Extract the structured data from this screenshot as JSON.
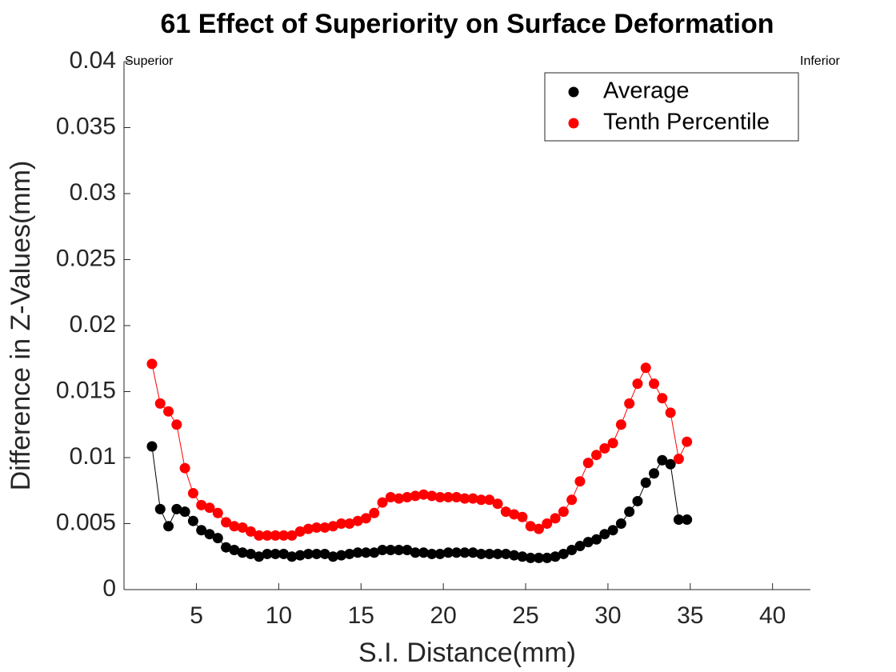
{
  "chart_data": {
    "type": "scatter-line",
    "title": "61  Effect of Superiority on Surface Deformation",
    "xlabel": "S.I. Distance(mm)",
    "ylabel": "Difference in Z-Values(mm)",
    "annotations": [
      "Superior",
      "Inferior"
    ],
    "legend": "upper right",
    "xlim": [
      0.6,
      42.3
    ],
    "ylim": [
      0,
      0.04
    ],
    "xticks": [
      5,
      10,
      15,
      20,
      25,
      30,
      35,
      40
    ],
    "yticks": [
      0,
      0.005,
      0.01,
      0.015,
      0.02,
      0.025,
      0.03,
      0.035,
      0.04
    ],
    "x": [
      2.3,
      2.8,
      3.3,
      3.8,
      4.3,
      4.8,
      5.3,
      5.8,
      6.3,
      6.8,
      7.3,
      7.8,
      8.3,
      8.8,
      9.3,
      9.8,
      10.3,
      10.8,
      11.3,
      11.8,
      12.3,
      12.8,
      13.3,
      13.8,
      14.3,
      14.8,
      15.3,
      15.8,
      16.3,
      16.8,
      17.3,
      17.8,
      18.3,
      18.8,
      19.3,
      19.8,
      20.3,
      20.8,
      21.3,
      21.8,
      22.3,
      22.8,
      23.3,
      23.8,
      24.3,
      24.8,
      25.3,
      25.8,
      26.3,
      26.8,
      27.3,
      27.8,
      28.3,
      28.8,
      29.3,
      29.8,
      30.3,
      30.8,
      31.3,
      31.8,
      32.3,
      32.8,
      33.3,
      33.8,
      34.3,
      34.8
    ],
    "series": [
      {
        "name": "Average",
        "color": "#000000",
        "values": [
          0.01085,
          0.0061,
          0.0048,
          0.0061,
          0.0059,
          0.0052,
          0.0045,
          0.0042,
          0.0039,
          0.0032,
          0.003,
          0.0028,
          0.0027,
          0.0025,
          0.0027,
          0.0027,
          0.0027,
          0.0025,
          0.0026,
          0.0027,
          0.0027,
          0.0027,
          0.0025,
          0.0026,
          0.0027,
          0.0028,
          0.0028,
          0.0028,
          0.003,
          0.003,
          0.003,
          0.003,
          0.0028,
          0.0028,
          0.0027,
          0.0027,
          0.0028,
          0.0028,
          0.0028,
          0.0028,
          0.0027,
          0.0027,
          0.0027,
          0.0027,
          0.0026,
          0.0025,
          0.0024,
          0.0024,
          0.0024,
          0.0025,
          0.0027,
          0.003,
          0.0033,
          0.0036,
          0.0038,
          0.0042,
          0.0045,
          0.005,
          0.0059,
          0.0067,
          0.0081,
          0.0088,
          0.0098,
          0.0095,
          0.0053,
          0.0053
        ]
      },
      {
        "name": "Tenth Percentile",
        "color": "#ff0000",
        "values": [
          0.0171,
          0.0141,
          0.0135,
          0.0125,
          0.0092,
          0.0073,
          0.0064,
          0.0062,
          0.0058,
          0.0051,
          0.0048,
          0.0047,
          0.0044,
          0.0041,
          0.0041,
          0.0041,
          0.0041,
          0.0041,
          0.0044,
          0.0046,
          0.0047,
          0.0047,
          0.0048,
          0.005,
          0.005,
          0.0052,
          0.0054,
          0.0058,
          0.0066,
          0.007,
          0.0069,
          0.007,
          0.0071,
          0.0072,
          0.0071,
          0.007,
          0.007,
          0.007,
          0.0069,
          0.0069,
          0.0068,
          0.0068,
          0.0065,
          0.0059,
          0.0057,
          0.0055,
          0.0048,
          0.0046,
          0.005,
          0.0054,
          0.0059,
          0.0068,
          0.0082,
          0.0096,
          0.0102,
          0.0107,
          0.0111,
          0.0125,
          0.0141,
          0.0156,
          0.0168,
          0.0156,
          0.0145,
          0.0134,
          0.0099,
          0.0112
        ]
      }
    ]
  }
}
